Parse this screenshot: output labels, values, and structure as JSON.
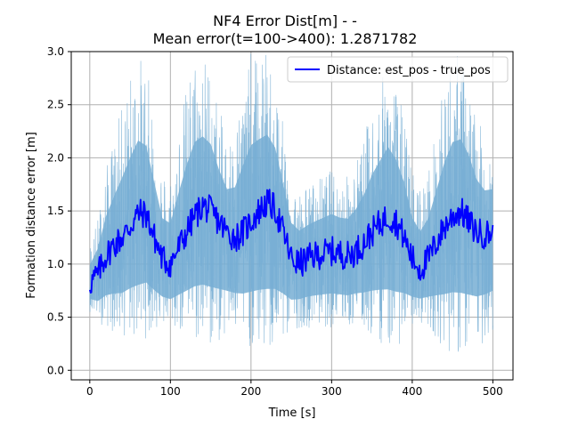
{
  "chart_data": {
    "type": "line",
    "title": "NF4 Error Dist[m] -  -",
    "subtitle": "Mean error(t=100->400): 1.2871782",
    "xlabel": "Time [s]",
    "ylabel": "Formation distance error [m]",
    "xlim": [
      -23,
      525
    ],
    "ylim": [
      -0.09,
      3.0
    ],
    "x_ticks": [
      0,
      100,
      200,
      300,
      400,
      500
    ],
    "y_ticks": [
      0.0,
      0.5,
      1.0,
      1.5,
      2.0,
      2.5,
      3.0
    ],
    "x_tick_labels": [
      "0",
      "100",
      "200",
      "300",
      "400",
      "500"
    ],
    "y_tick_labels": [
      "0.0",
      "0.5",
      "1.0",
      "1.5",
      "2.0",
      "2.5",
      "3.0"
    ],
    "grid": true,
    "legend_position": "top-right",
    "colors": {
      "line": "#0000ff",
      "band": "#77aed4",
      "grid": "#b0b0b0"
    },
    "series": [
      {
        "name": "Distance: est_pos - true_pos",
        "x": [
          0,
          10,
          20,
          30,
          40,
          50,
          60,
          70,
          80,
          90,
          100,
          110,
          120,
          130,
          140,
          150,
          160,
          170,
          180,
          190,
          200,
          210,
          220,
          230,
          240,
          250,
          260,
          270,
          280,
          290,
          300,
          310,
          320,
          330,
          340,
          350,
          360,
          370,
          380,
          390,
          400,
          410,
          420,
          430,
          440,
          450,
          460,
          470,
          480,
          490,
          500
        ],
        "values": [
          0.82,
          0.9,
          1.08,
          1.18,
          1.25,
          1.35,
          1.48,
          1.47,
          1.25,
          1.05,
          1.0,
          1.15,
          1.3,
          1.45,
          1.55,
          1.5,
          1.4,
          1.3,
          1.25,
          1.3,
          1.4,
          1.5,
          1.58,
          1.52,
          1.3,
          1.05,
          1.0,
          1.05,
          1.08,
          1.1,
          1.12,
          1.1,
          1.08,
          1.12,
          1.2,
          1.3,
          1.38,
          1.45,
          1.4,
          1.25,
          1.05,
          0.95,
          1.05,
          1.2,
          1.35,
          1.45,
          1.5,
          1.4,
          1.3,
          1.28,
          1.3
        ],
        "band_lower": [
          0.55,
          0.45,
          0.4,
          0.35,
          0.3,
          0.3,
          0.25,
          0.3,
          0.35,
          0.4,
          0.4,
          0.35,
          0.3,
          0.25,
          0.2,
          0.2,
          0.25,
          0.3,
          0.3,
          0.25,
          0.2,
          0.15,
          0.1,
          0.15,
          0.25,
          0.35,
          0.4,
          0.4,
          0.4,
          0.4,
          0.4,
          0.4,
          0.4,
          0.4,
          0.35,
          0.3,
          0.25,
          0.2,
          0.2,
          0.3,
          0.4,
          0.45,
          0.4,
          0.3,
          0.2,
          0.15,
          0.1,
          0.15,
          0.2,
          0.25,
          0.3
        ],
        "band_upper": [
          1.2,
          1.45,
          1.9,
          2.2,
          2.5,
          2.8,
          3.0,
          2.9,
          2.4,
          1.9,
          1.85,
          2.3,
          2.7,
          3.0,
          3.0,
          2.9,
          2.5,
          2.2,
          2.3,
          2.7,
          3.0,
          3.0,
          3.0,
          2.8,
          2.3,
          1.8,
          1.7,
          1.75,
          1.8,
          1.85,
          1.9,
          1.85,
          1.85,
          2.0,
          2.2,
          2.5,
          2.7,
          2.9,
          2.7,
          2.4,
          1.9,
          1.75,
          1.9,
          2.3,
          2.7,
          3.0,
          3.0,
          2.8,
          2.4,
          2.2,
          2.2
        ]
      }
    ]
  }
}
